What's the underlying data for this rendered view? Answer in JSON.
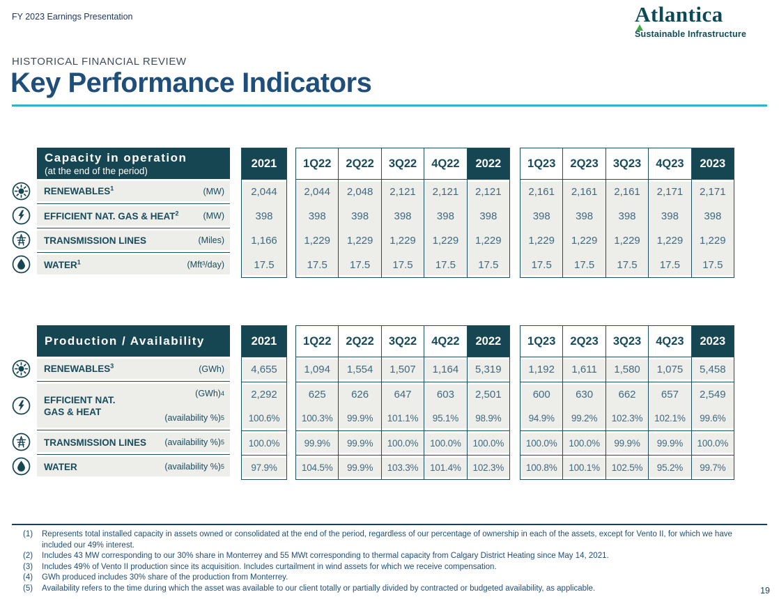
{
  "page": {
    "presentation_label": "FY 2023 Earnings Presentation",
    "eyebrow": "HISTORICAL FINANCIAL REVIEW",
    "title": "Key Performance Indicators",
    "page_number": "19"
  },
  "logo": {
    "name": "Atlantica",
    "tagline": "Sustainable Infrastructure"
  },
  "theme": {
    "header_teal": "#174653",
    "accent_cyan": "#2fb0cc",
    "title_blue": "#1f4e79",
    "value_blue": "#3f697f",
    "row_gray": "#ededea",
    "logo_green": "#41a948"
  },
  "columns": {
    "year_first": "2021",
    "groups": [
      {
        "headers": [
          "1Q22",
          "2Q22",
          "3Q22",
          "4Q22",
          "2022"
        ]
      },
      {
        "headers": [
          "1Q23",
          "2Q23",
          "3Q23",
          "4Q23",
          "2023"
        ]
      }
    ]
  },
  "tables": [
    {
      "title": "Capacity in operation",
      "subtitle": "(at the end of the period)",
      "rows": [
        {
          "icon": "sun-icon",
          "label": "RENEWABLES",
          "label_sup": "1",
          "lines": [
            {
              "unit": "(MW)",
              "v2021": "2,044",
              "v2022": [
                "2,044",
                "2,048",
                "2,121",
                "2,121",
                "2,121"
              ],
              "v2023": [
                "2,161",
                "2,161",
                "2,161",
                "2,171",
                "2,171"
              ]
            }
          ]
        },
        {
          "icon": "bolt-icon",
          "label": "EFFICIENT NAT. GAS & HEAT",
          "label_sup": "2",
          "lines": [
            {
              "unit": "(MW)",
              "v2021": "398",
              "v2022": [
                "398",
                "398",
                "398",
                "398",
                "398"
              ],
              "v2023": [
                "398",
                "398",
                "398",
                "398",
                "398"
              ]
            }
          ]
        },
        {
          "icon": "tower-icon",
          "label": "TRANSMISSION LINES",
          "lines": [
            {
              "unit": "(Miles)",
              "v2021": "1,166",
              "v2022": [
                "1,229",
                "1,229",
                "1,229",
                "1,229",
                "1,229"
              ],
              "v2023": [
                "1,229",
                "1,229",
                "1,229",
                "1,229",
                "1,229"
              ]
            }
          ]
        },
        {
          "icon": "drop-icon",
          "label": "WATER",
          "label_sup": "1",
          "lines": [
            {
              "unit": "(Mft³/day)",
              "v2021": "17.5",
              "v2022": [
                "17.5",
                "17.5",
                "17.5",
                "17.5",
                "17.5"
              ],
              "v2023": [
                "17.5",
                "17.5",
                "17.5",
                "17.5",
                "17.5"
              ]
            }
          ]
        }
      ]
    },
    {
      "title": "Production / Availability",
      "rows": [
        {
          "icon": "sun-icon",
          "label": "RENEWABLES",
          "label_sup": "3",
          "lines": [
            {
              "unit": "(GWh)",
              "v2021": "4,655",
              "v2022": [
                "1,094",
                "1,554",
                "1,507",
                "1,164",
                "5,319"
              ],
              "v2023": [
                "1,192",
                "1,611",
                "1,580",
                "1,075",
                "5,458"
              ]
            }
          ]
        },
        {
          "icon": "bolt-icon",
          "label": "EFFICIENT NAT. GAS & HEAT",
          "label_lines": [
            "EFFICIENT NAT.",
            "GAS & HEAT"
          ],
          "lines": [
            {
              "unit": "(GWh)",
              "unit_sup": "4",
              "v2021": "2,292",
              "v2022": [
                "625",
                "626",
                "647",
                "603",
                "2,501"
              ],
              "v2023": [
                "600",
                "630",
                "662",
                "657",
                "2,549"
              ]
            },
            {
              "unit": "(availability %)",
              "unit_sup": "5",
              "v2021": "100.6%",
              "v2022": [
                "100.3%",
                "99.9%",
                "101.1%",
                "95.1%",
                "98.9%"
              ],
              "v2023": [
                "94.9%",
                "99.2%",
                "102.3%",
                "102.1%",
                "99.6%"
              ]
            }
          ]
        },
        {
          "icon": "tower-icon",
          "label": "TRANSMISSION LINES",
          "lines": [
            {
              "unit": "(availability %)",
              "unit_sup": "5",
              "v2021": "100.0%",
              "v2022": [
                "99.9%",
                "99.9%",
                "100.0%",
                "100.0%",
                "100.0%"
              ],
              "v2023": [
                "100.0%",
                "100.0%",
                "99.9%",
                "99.9%",
                "100.0%"
              ]
            }
          ]
        },
        {
          "icon": "drop-icon",
          "label": "WATER",
          "lines": [
            {
              "unit": "(availability %)",
              "unit_sup": "5",
              "v2021": "97.9%",
              "v2022": [
                "104.5%",
                "99.9%",
                "103.3%",
                "101.4%",
                "102.3%"
              ],
              "v2023": [
                "100.8%",
                "100.1%",
                "102.5%",
                "95.2%",
                "99.7%"
              ]
            }
          ]
        }
      ]
    }
  ],
  "footnotes": [
    {
      "num": "(1)",
      "text": "Represents total installed capacity in assets owned or consolidated at the end of the period, regardless of our percentage of ownership in each of the assets, except for Vento II, for which we have included our 49% interest."
    },
    {
      "num": "(2)",
      "text": "Includes 43 MW corresponding to our 30% share in Monterrey and 55 MWt corresponding to thermal capacity from Calgary District Heating since May 14, 2021."
    },
    {
      "num": "(3)",
      "text": "Includes 49% of Vento II production since its acquisition. Includes curtailment in wind assets for which we receive compensation."
    },
    {
      "num": "(4)",
      "text": "GWh produced includes 30% share of the production from Monterrey."
    },
    {
      "num": "(5)",
      "text": "Availability refers to the time during which the asset was available to our client totally or partially divided by contracted or budgeted availability, as applicable."
    }
  ]
}
